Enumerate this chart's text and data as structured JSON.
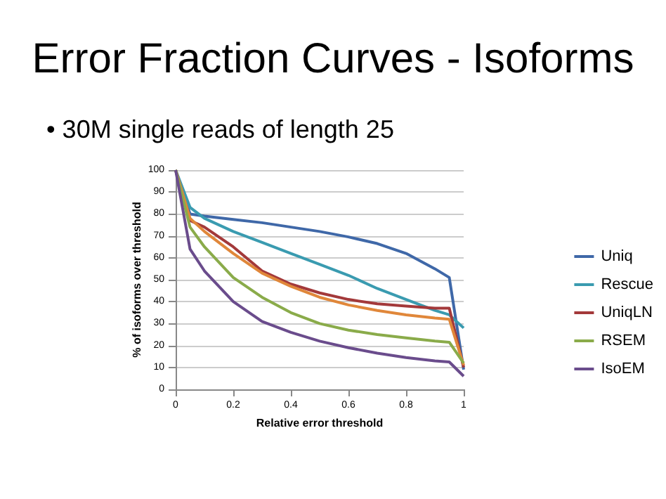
{
  "chart_data": {
    "type": "line",
    "title": "Error Fraction Curves - Isoforms",
    "subtitle": "• 30M single reads of length 25",
    "xlabel": "Relative error threshold",
    "ylabel": "% of isoforms over threshold",
    "x": [
      0,
      0.05,
      0.1,
      0.2,
      0.3,
      0.4,
      0.5,
      0.6,
      0.7,
      0.8,
      0.9,
      0.95,
      1
    ],
    "series": [
      {
        "name": "Uniq",
        "color": "#3f68a8",
        "values": [
          100,
          80,
          79,
          77.5,
          76,
          74,
          72,
          69.5,
          66.5,
          62,
          55,
          51,
          9
        ]
      },
      {
        "name": "Rescue",
        "color": "#3a9bb0",
        "values": [
          100,
          83,
          78,
          72,
          67,
          62,
          57,
          52,
          46,
          41,
          36,
          34,
          28
        ]
      },
      {
        "name": "UniqLN",
        "color": "#a3393a",
        "values": [
          100,
          77,
          74,
          65,
          54,
          48,
          44,
          41,
          39,
          38,
          37,
          37,
          10
        ]
      },
      {
        "color": "#e0873a",
        "values": [
          100,
          78,
          72,
          62,
          53,
          47,
          42,
          38.5,
          36,
          34,
          32.5,
          32,
          11
        ]
      },
      {
        "name": "RSEM",
        "color": "#8aab4a",
        "values": [
          100,
          74,
          65,
          51,
          42,
          35,
          30,
          27,
          25,
          23.5,
          22,
          21.5,
          12
        ]
      },
      {
        "name": "IsoEM",
        "color": "#6a4c8c",
        "values": [
          100,
          64,
          54,
          40,
          31,
          26,
          22,
          19,
          16.5,
          14.5,
          13,
          12.5,
          6
        ]
      }
    ],
    "xlim": [
      0,
      1
    ],
    "xticks": [
      0,
      0.2,
      0.4,
      0.6,
      0.8,
      1
    ],
    "ylim": [
      0,
      100
    ],
    "yticks": [
      0,
      10,
      20,
      30,
      40,
      50,
      60,
      70,
      80,
      90,
      100
    ],
    "grid": "y",
    "legend": "right",
    "marker": "none",
    "line_style": "solid"
  }
}
